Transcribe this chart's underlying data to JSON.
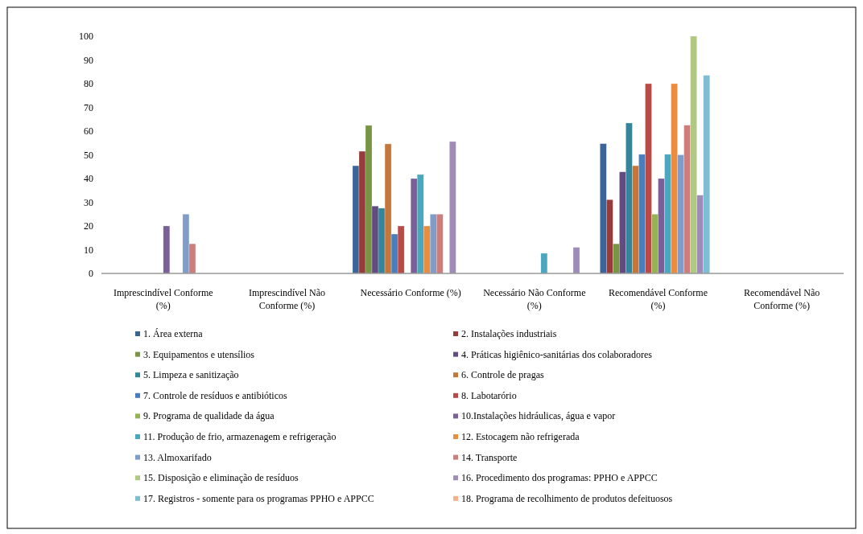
{
  "chart_data": {
    "type": "bar",
    "categories": [
      "Imprescindível Conforme (%)",
      "Imprescindível Não Conforme (%)",
      "Necessário Conforme (%)",
      "Necessário Não Conforme (%)",
      "Recomendável Conforme (%)",
      "Recomendável Não Conforme (%)"
    ],
    "ylim": [
      0,
      100
    ],
    "yticks": [
      0,
      10,
      20,
      30,
      40,
      50,
      60,
      70,
      80,
      90,
      100
    ],
    "legend": "bottom",
    "series": [
      {
        "name": "1.  Área externa",
        "color": "#3c6496",
        "values": [
          null,
          null,
          45.4,
          null,
          54.7,
          null
        ]
      },
      {
        "name": "2. Instalações industriais",
        "color": "#963c3b",
        "values": [
          null,
          null,
          51.5,
          null,
          31.1,
          null
        ]
      },
      {
        "name": "3. Equipamentos e utensílios",
        "color": "#7a9446",
        "values": [
          null,
          null,
          62.4,
          null,
          12.5,
          null
        ]
      },
      {
        "name": "4. Práticas higiênico-sanitárias  dos colaboradores",
        "color": "#614b7f",
        "values": [
          null,
          null,
          28.4,
          null,
          42.8,
          null
        ]
      },
      {
        "name": "5. Limpeza e sanitização",
        "color": "#34849a",
        "values": [
          null,
          null,
          27.5,
          null,
          63.4,
          null
        ]
      },
      {
        "name": "6. Controle de pragas",
        "color": "#c4773a",
        "values": [
          null,
          null,
          54.6,
          null,
          45.4,
          null
        ]
      },
      {
        "name": "7. Controle de resíduos e antibióticos",
        "color": "#4a7ebb",
        "values": [
          null,
          null,
          16.6,
          null,
          50.2,
          null
        ]
      },
      {
        "name": "8. Labotarório",
        "color": "#b84a47",
        "values": [
          null,
          null,
          20,
          null,
          80,
          null
        ]
      },
      {
        "name": "9. Programa de qualidade da água",
        "color": "#94b256",
        "values": [
          null,
          null,
          null,
          null,
          25,
          null
        ]
      },
      {
        "name": "10.Instalações hidráulicas, água e vapor",
        "color": "#7a5f99",
        "values": [
          20,
          null,
          40,
          null,
          40,
          null
        ]
      },
      {
        "name": "11. Produção de frio, armazenagem  e refrigeração",
        "color": "#4aa7be",
        "values": [
          null,
          null,
          41.7,
          8.5,
          50.2,
          null
        ]
      },
      {
        "name": "12. Estocagem não refrigerada",
        "color": "#ea8d40",
        "values": [
          null,
          null,
          20,
          null,
          80,
          null
        ]
      },
      {
        "name": "13. Almoxarifado",
        "color": "#7f9dc8",
        "values": [
          25,
          null,
          25,
          null,
          50,
          null
        ]
      },
      {
        "name": "14. Transporte",
        "color": "#cc7d7c",
        "values": [
          12.5,
          null,
          25,
          null,
          62.5,
          null
        ]
      },
      {
        "name": "15. Disposição e eliminação  de resíduos",
        "color": "#afc984",
        "values": [
          null,
          null,
          null,
          null,
          100,
          null
        ]
      },
      {
        "name": "16. Procedimento dos programas:  PPHO e APPCC",
        "color": "#9e8bb8",
        "values": [
          null,
          null,
          55.6,
          11,
          33,
          null
        ]
      },
      {
        "name": "17. Registros - somente para os programas  PPHO e APPCC",
        "color": "#7ebdd2",
        "values": [
          null,
          null,
          null,
          null,
          83.5,
          null
        ]
      },
      {
        "name": "18. Programa de recolhimento de produtos defeituosos",
        "color": "#f6b08a",
        "values": [
          null,
          null,
          null,
          null,
          null,
          null
        ]
      }
    ]
  }
}
